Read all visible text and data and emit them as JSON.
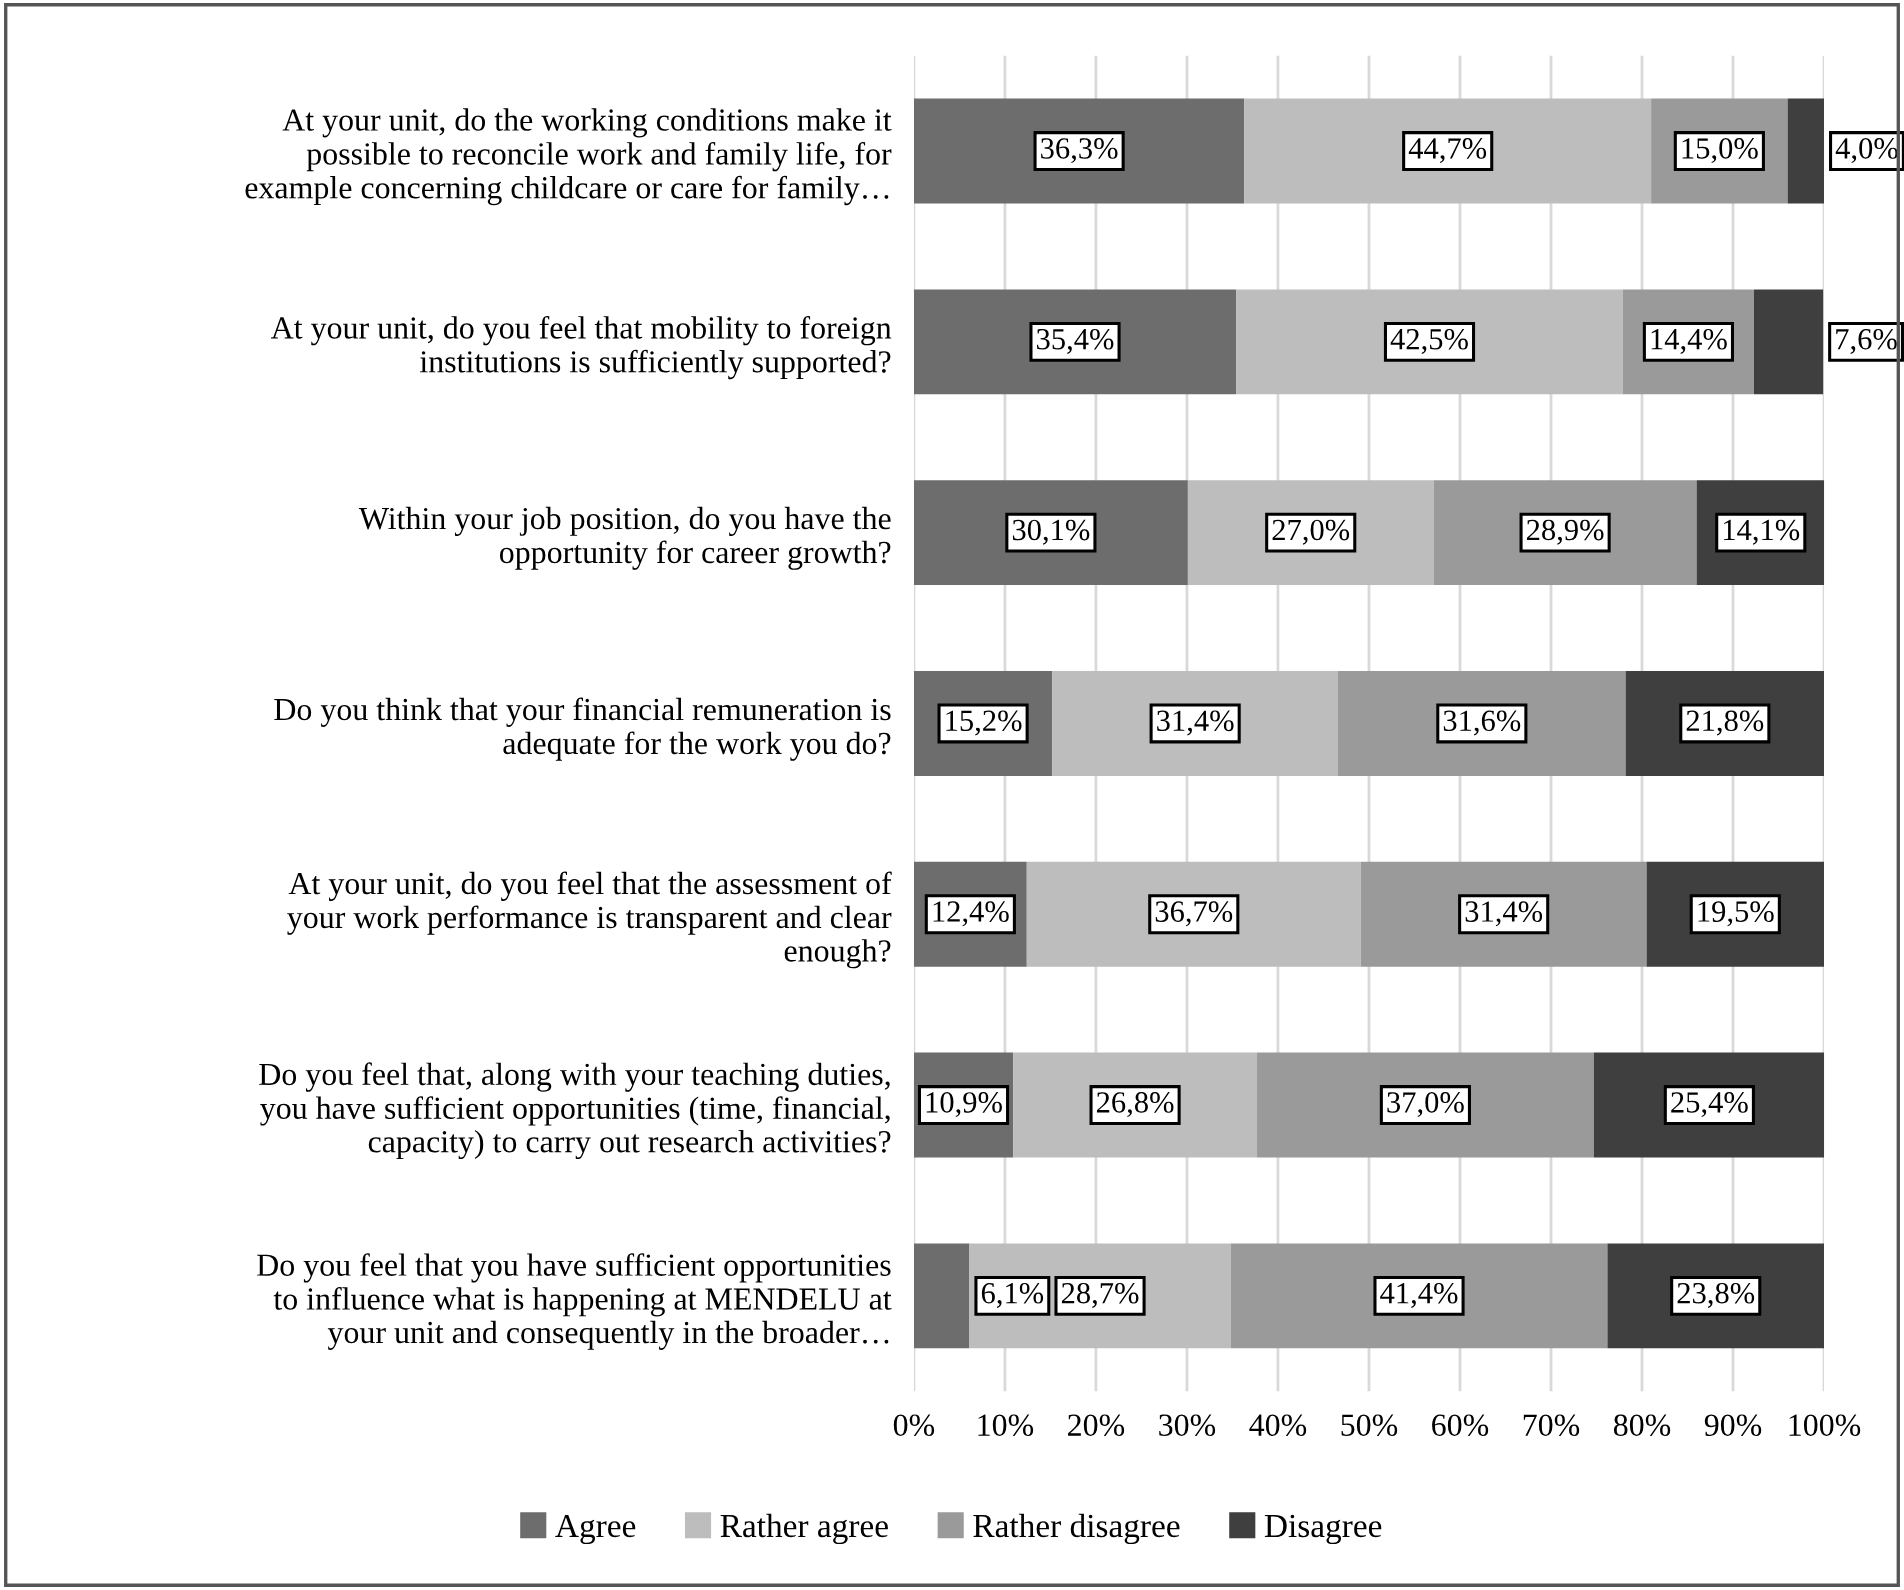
{
  "chart_data": {
    "type": "bar",
    "orientation": "horizontal",
    "stacked": true,
    "categories": [
      "At your unit, do the working conditions make it\npossible to reconcile work and family life, for\nexample concerning childcare or care for family…",
      "At your unit, do you feel that mobility to foreign\ninstitutions is sufficiently supported?",
      "Within your job position, do you have the\nopportunity for career growth?",
      "Do you think that your financial remuneration is\nadequate for the work you do?",
      "At your unit, do you feel that the assessment of\nyour work performance is transparent and clear\nenough?",
      "Do you feel that, along with your teaching duties,\nyou have sufficient opportunities (time, financial,\ncapacity) to carry out research activities?",
      "Do you feel that you have sufficient opportunities\nto influence what is happening at MENDELU at\nyour unit and consequently in the broader…"
    ],
    "series": [
      {
        "name": "Agree",
        "color": "#6d6d6d",
        "values": [
          36.3,
          35.4,
          30.1,
          15.2,
          12.4,
          10.9,
          6.1
        ],
        "value_labels": [
          "36,3%",
          "35,4%",
          "30,1%",
          "15,2%",
          "12,4%",
          "10,9%",
          "6,1%"
        ]
      },
      {
        "name": "Rather agree",
        "color": "#bdbdbd",
        "values": [
          44.7,
          42.5,
          27.0,
          31.4,
          36.7,
          26.8,
          28.7
        ],
        "value_labels": [
          "44,7%",
          "42,5%",
          "27,0%",
          "31,4%",
          "36,7%",
          "26,8%",
          "28,7%"
        ]
      },
      {
        "name": "Rather disagree",
        "color": "#9a9a9a",
        "values": [
          15.0,
          14.4,
          28.9,
          31.6,
          31.4,
          37.0,
          41.4
        ],
        "value_labels": [
          "15,0%",
          "14,4%",
          "28,9%",
          "31,6%",
          "31,4%",
          "37,0%",
          "41,4%"
        ]
      },
      {
        "name": "Disagree",
        "color": "#3f3f3f",
        "values": [
          4.0,
          7.6,
          14.1,
          21.8,
          19.5,
          25.4,
          23.8
        ],
        "value_labels": [
          "4,0%",
          "7,6%",
          "14,1%",
          "21,8%",
          "19,5%",
          "25,4%",
          "23,8%"
        ]
      }
    ],
    "xlim": [
      0,
      100
    ],
    "xticks": [
      {
        "value": 0,
        "label": "0%"
      },
      {
        "value": 10,
        "label": "10%"
      },
      {
        "value": 20,
        "label": "20%"
      },
      {
        "value": 30,
        "label": "30%"
      },
      {
        "value": 40,
        "label": "40%"
      },
      {
        "value": 50,
        "label": "50%"
      },
      {
        "value": 60,
        "label": "60%"
      },
      {
        "value": 70,
        "label": "70%"
      },
      {
        "value": 80,
        "label": "80%"
      },
      {
        "value": 90,
        "label": "90%"
      },
      {
        "value": 100,
        "label": "100%"
      }
    ],
    "grid": "x",
    "legend": "bottom"
  }
}
